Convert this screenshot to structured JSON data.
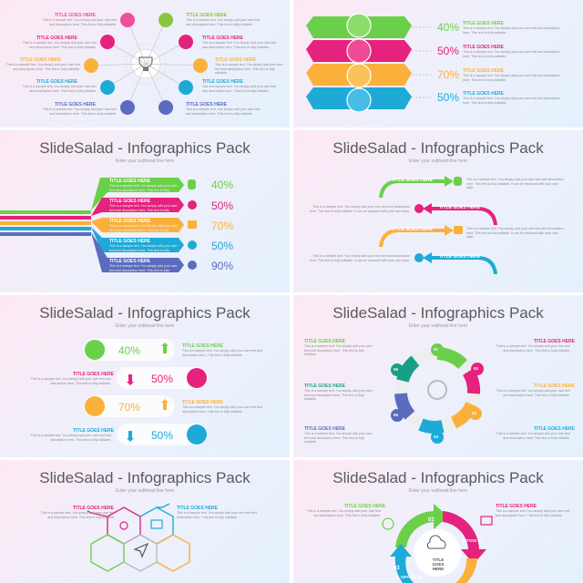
{
  "header": {
    "title": "SlideSalad - Infographics Pack",
    "subtitle": "Enter your subhead line here"
  },
  "labels": {
    "title": "TITLE GOES HERE",
    "body": "This is a sample text. You simply add your own text and description here. This text is fully editable.",
    "body_alt": "This is a sample text. You simply add your own text and description here. This text is fully editable. It can be replaced with your own style."
  },
  "slide2": {
    "values": [
      "40%",
      "50%",
      "70%",
      "50%"
    ]
  },
  "slide3": {
    "values": [
      "40%",
      "50%",
      "70%",
      "50%",
      "90%"
    ]
  },
  "slide5": {
    "values": [
      "40%",
      "50%",
      "70%",
      "50%"
    ]
  },
  "slide6": {
    "steps": [
      "01",
      "02",
      "03",
      "04",
      "05",
      "06"
    ]
  },
  "slide8": {
    "steps": [
      "01",
      "02",
      "03"
    ],
    "options": [
      "OPTION 01",
      "OPTION 04"
    ],
    "center": "TITLE GOES HERE"
  },
  "colors": {
    "green": "#8cc63f",
    "pink": "#e5227d",
    "orange": "#fbb03b",
    "cyan": "#1eaad7",
    "purple": "#5b6bbf",
    "lime": "#6ad04a"
  }
}
